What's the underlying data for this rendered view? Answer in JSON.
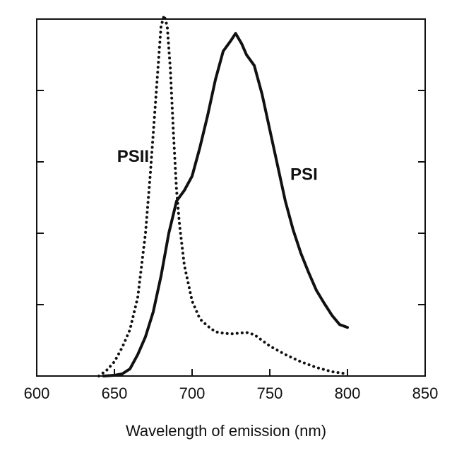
{
  "chart_data": {
    "type": "line",
    "title": "",
    "xlabel": "Wavelength of emission (nm)",
    "ylabel": "",
    "xlim": [
      600,
      850
    ],
    "ylim": [
      0,
      5
    ],
    "x_ticks": [
      "600",
      "650",
      "700",
      "750",
      "800",
      "850"
    ],
    "y_tick_values": [
      0,
      1,
      2,
      3,
      4,
      5
    ],
    "grid": false,
    "legend": "none",
    "series": [
      {
        "name": "PSII",
        "style": "dotted",
        "color": "#111111",
        "points": [
          [
            640,
            0.0
          ],
          [
            645,
            0.08
          ],
          [
            650,
            0.2
          ],
          [
            655,
            0.4
          ],
          [
            660,
            0.65
          ],
          [
            665,
            1.1
          ],
          [
            670,
            2.0
          ],
          [
            673,
            2.8
          ],
          [
            676,
            3.7
          ],
          [
            678,
            4.3
          ],
          [
            680,
            4.9
          ],
          [
            682,
            5.05
          ],
          [
            684,
            4.9
          ],
          [
            686,
            4.3
          ],
          [
            688,
            3.4
          ],
          [
            690,
            2.6
          ],
          [
            692,
            2.1
          ],
          [
            695,
            1.55
          ],
          [
            700,
            1.05
          ],
          [
            705,
            0.8
          ],
          [
            710,
            0.7
          ],
          [
            715,
            0.62
          ],
          [
            720,
            0.6
          ],
          [
            725,
            0.59
          ],
          [
            730,
            0.6
          ],
          [
            735,
            0.61
          ],
          [
            740,
            0.58
          ],
          [
            745,
            0.5
          ],
          [
            750,
            0.42
          ],
          [
            760,
            0.3
          ],
          [
            770,
            0.2
          ],
          [
            780,
            0.12
          ],
          [
            790,
            0.06
          ],
          [
            800,
            0.03
          ]
        ]
      },
      {
        "name": "PSI",
        "style": "solid",
        "color": "#111111",
        "points": [
          [
            643,
            0.0
          ],
          [
            650,
            0.01
          ],
          [
            655,
            0.03
          ],
          [
            660,
            0.1
          ],
          [
            665,
            0.3
          ],
          [
            670,
            0.55
          ],
          [
            675,
            0.9
          ],
          [
            680,
            1.4
          ],
          [
            685,
            2.0
          ],
          [
            690,
            2.45
          ],
          [
            695,
            2.6
          ],
          [
            700,
            2.8
          ],
          [
            705,
            3.2
          ],
          [
            710,
            3.65
          ],
          [
            715,
            4.15
          ],
          [
            720,
            4.55
          ],
          [
            725,
            4.7
          ],
          [
            728,
            4.8
          ],
          [
            732,
            4.65
          ],
          [
            735,
            4.5
          ],
          [
            740,
            4.35
          ],
          [
            745,
            3.95
          ],
          [
            750,
            3.45
          ],
          [
            755,
            2.95
          ],
          [
            760,
            2.45
          ],
          [
            765,
            2.05
          ],
          [
            770,
            1.72
          ],
          [
            775,
            1.45
          ],
          [
            780,
            1.2
          ],
          [
            785,
            1.02
          ],
          [
            790,
            0.85
          ],
          [
            795,
            0.72
          ],
          [
            800,
            0.68
          ]
        ]
      }
    ],
    "annotations": [
      {
        "text": "PSII",
        "x": 662,
        "y": 3.0
      },
      {
        "text": "PSI",
        "x": 772,
        "y": 2.75
      }
    ]
  }
}
